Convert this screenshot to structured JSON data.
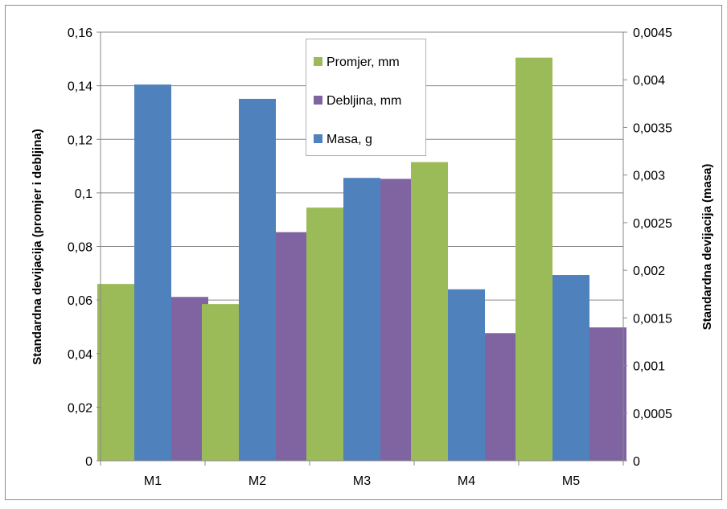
{
  "chart_data": {
    "type": "bar",
    "categories": [
      "M1",
      "M2",
      "M3",
      "M4",
      "M5"
    ],
    "series": [
      {
        "name": "Promjer, mm",
        "axis": "left",
        "color": "#9BBB59",
        "values": [
          0.066,
          0.0585,
          0.0945,
          0.1115,
          0.1505
        ]
      },
      {
        "name": "Masa, g",
        "axis": "right",
        "color": "#4F81BD",
        "values": [
          0.00395,
          0.0038,
          0.00297,
          0.0018,
          0.00195
        ]
      },
      {
        "name": "Debljina, mm",
        "axis": "right",
        "color": "#8064A2",
        "values": [
          0.00172,
          0.0024,
          0.00296,
          0.00134,
          0.0014
        ]
      }
    ],
    "legend_order": [
      "Promjer, mm",
      "Debljina, mm",
      "Masa, g"
    ],
    "legend_position": "top-center",
    "ylabel_left": "Standardna devijacija (promjer i debljina)",
    "ylabel_right": "Standardna devijacija (masa)",
    "ylim_left": [
      0,
      0.16
    ],
    "ylim_right": [
      0,
      0.0045
    ],
    "yticks_left": [
      "0",
      "0,02",
      "0,04",
      "0,06",
      "0,08",
      "0,1",
      "0,12",
      "0,14",
      "0,16"
    ],
    "yticks_right": [
      "0",
      "0,0005",
      "0,001",
      "0,0015",
      "0,002",
      "0,0025",
      "0,003",
      "0,0035",
      "0,004",
      "0,0045"
    ],
    "grid": "horizontal"
  }
}
